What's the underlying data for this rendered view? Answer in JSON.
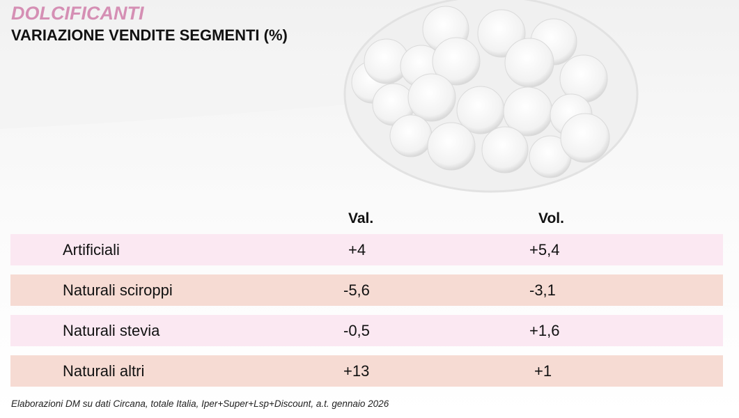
{
  "header": {
    "title": "DOLCIFICANTI",
    "subtitle": "VARIAZIONE VENDITE SEGMENTI (%)"
  },
  "table": {
    "columns": [
      "Val.",
      "Vol."
    ],
    "rows": [
      {
        "segment": "Artificiali",
        "val": "+4",
        "vol": "+5,4"
      },
      {
        "segment": "Naturali sciroppi",
        "val": "-5,6",
        "vol": "-3,1"
      },
      {
        "segment": "Naturali stevia",
        "val": "-0,5",
        "vol": "+1,6"
      },
      {
        "segment": "Naturali altri",
        "val": "+13",
        "vol": "+1"
      }
    ]
  },
  "footer": "Elaborazioni DM su dati Circana, totale Italia, Iper+Super+Lsp+Discount, a.t. gennaio 2026",
  "colors": {
    "title": "#d58fb4",
    "row_pink": "#fbe8f2",
    "row_salmon": "#f6dbd3"
  }
}
